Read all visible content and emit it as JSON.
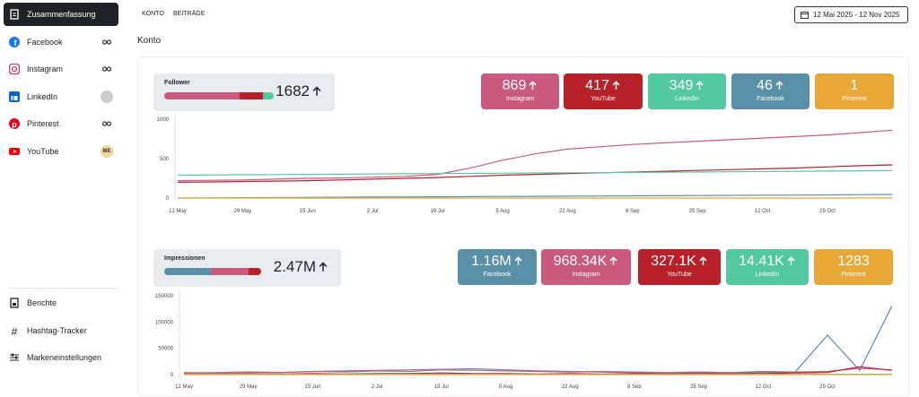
{
  "sidebar": {
    "items": [
      {
        "label": "Zusammenfassung"
      },
      {
        "label": "Facebook"
      },
      {
        "label": "Instagram"
      },
      {
        "label": "LinkedIn"
      },
      {
        "label": "Pinterest"
      },
      {
        "label": "YouTube",
        "badge": "ME"
      }
    ],
    "bottom": [
      {
        "label": "Berichte"
      },
      {
        "label": "Hashtag-Tracker"
      },
      {
        "label": "Markeneinstellungen"
      }
    ]
  },
  "tabs": [
    "KONTO",
    "BEITRÄGE"
  ],
  "date_range": "12 Mai 2025 - 12 Nov 2025",
  "section_title": "Konto",
  "panels": [
    {
      "summary": {
        "label": "Follower",
        "total": 1682
      },
      "cards": [
        {
          "value": 869,
          "name": "Instagram",
          "color": "#c95a7e"
        },
        {
          "value": 417,
          "name": "YouTube",
          "color": "#b8202a"
        },
        {
          "value": 349,
          "name": "LinkedIn",
          "color": "#52c9a0"
        },
        {
          "value": 46,
          "name": "Facebook",
          "color": "#5a8fa8"
        },
        {
          "value": 1,
          "name": "Pinterest",
          "color": "#e8a838"
        }
      ],
      "chart": {
        "type": "line",
        "categories": [
          "12 May",
          null,
          "29 May",
          null,
          "15 Jun",
          null,
          "2 Jul",
          null,
          "19 Jul",
          null,
          "5 Aug",
          null,
          "22 Aug",
          null,
          "8 Sep",
          null,
          "25 Sep",
          null,
          "12 Oct",
          null,
          "29 Oct",
          null,
          null
        ],
        "ylim": [
          0,
          1000
        ],
        "yticks": [
          0,
          500,
          1000
        ],
        "series": [
          {
            "name": "Instagram",
            "color": "#c95a7e",
            "values": [
              220,
              225,
              230,
              240,
              250,
              255,
              265,
              275,
              300,
              380,
              480,
              560,
              620,
              650,
              680,
              700,
              720,
              740,
              760,
              780,
              800,
              830,
              860
            ]
          },
          {
            "name": "YouTube",
            "color": "#b8202a",
            "values": [
              200,
              205,
              210,
              215,
              220,
              230,
              240,
              250,
              260,
              275,
              290,
              300,
              310,
              320,
              330,
              340,
              350,
              360,
              370,
              380,
              395,
              410,
              420
            ]
          },
          {
            "name": "LinkedIn",
            "color": "#52c9a0",
            "values": [
              290,
              292,
              295,
              298,
              300,
              302,
              305,
              308,
              310,
              312,
              315,
              318,
              320,
              322,
              325,
              328,
              330,
              333,
              336,
              339,
              342,
              345,
              349
            ]
          },
          {
            "name": "Facebook",
            "color": "#5a8fa8",
            "values": [
              0,
              2,
              4,
              6,
              8,
              10,
              12,
              14,
              16,
              18,
              20,
              22,
              24,
              26,
              28,
              30,
              32,
              34,
              36,
              38,
              40,
              43,
              46
            ]
          },
          {
            "name": "Pinterest",
            "color": "#e8a838",
            "values": [
              0,
              0,
              0,
              0,
              0,
              0,
              0,
              0,
              0,
              0,
              0,
              0,
              0,
              0,
              0,
              0,
              0,
              0,
              0,
              0,
              0,
              1,
              1
            ]
          }
        ]
      }
    },
    {
      "summary": {
        "label": "Impressionen",
        "total": "2.47M"
      },
      "cards": [
        {
          "value": "1.16M",
          "name": "Facebook",
          "color": "#5a8fa8"
        },
        {
          "value": "968.34K",
          "name": "Instagram",
          "color": "#c95a7e"
        },
        {
          "value": "327.1K",
          "name": "YouTube",
          "color": "#b8202a"
        },
        {
          "value": "14.41K",
          "name": "LinkedIn",
          "color": "#52c9a0"
        },
        {
          "value": 1283,
          "name": "Pinterest",
          "color": "#e8a838"
        }
      ],
      "chart": {
        "type": "line",
        "categories": [
          "12 May",
          null,
          "29 May",
          null,
          "15 Jun",
          null,
          "2 Jul",
          null,
          "19 Jul",
          null,
          "5 Aug",
          null,
          "22 Aug",
          null,
          "8 Sep",
          null,
          "25 Sep",
          null,
          "12 Oct",
          null,
          "29 Oct",
          null,
          null
        ],
        "ylim": [
          0,
          150000
        ],
        "yticks": [
          0,
          50000,
          100000,
          150000
        ],
        "series": [
          {
            "name": "Facebook",
            "color": "#5a8fa8",
            "values": [
              4000,
              3000,
              5000,
              4000,
              6000,
              5000,
              7000,
              6000,
              9000,
              8000,
              7000,
              6000,
              5000,
              6000,
              5000,
              4000,
              5000,
              4000,
              6000,
              5000,
              75000,
              8000,
              130000
            ]
          },
          {
            "name": "Instagram",
            "color": "#c95a7e",
            "values": [
              3000,
              4000,
              5000,
              4000,
              6000,
              7000,
              8000,
              9000,
              10000,
              11000,
              9000,
              7000,
              6000,
              5000,
              4000,
              3000,
              4000,
              3000,
              4000,
              5000,
              6000,
              12000,
              9000
            ]
          },
          {
            "name": "YouTube",
            "color": "#b8202a",
            "values": [
              1000,
              1000,
              2000,
              1000,
              2000,
              1000,
              2000,
              2000,
              3000,
              2000,
              2000,
              1000,
              2000,
              1000,
              2000,
              1000,
              2000,
              1000,
              2000,
              3000,
              4000,
              15000,
              8000
            ]
          },
          {
            "name": "LinkedIn",
            "color": "#52c9a0",
            "values": [
              500,
              400,
              600,
              500,
              500,
              400,
              600,
              500,
              700,
              600,
              500,
              400,
              500,
              400,
              500,
              400,
              500,
              400,
              600,
              500,
              700,
              600,
              800
            ]
          },
          {
            "name": "Pinterest",
            "color": "#e8a838",
            "values": [
              0,
              0,
              0,
              0,
              0,
              0,
              0,
              0,
              0,
              0,
              0,
              0,
              0,
              0,
              0,
              0,
              0,
              0,
              0,
              0,
              0,
              0,
              0
            ]
          }
        ]
      }
    }
  ]
}
